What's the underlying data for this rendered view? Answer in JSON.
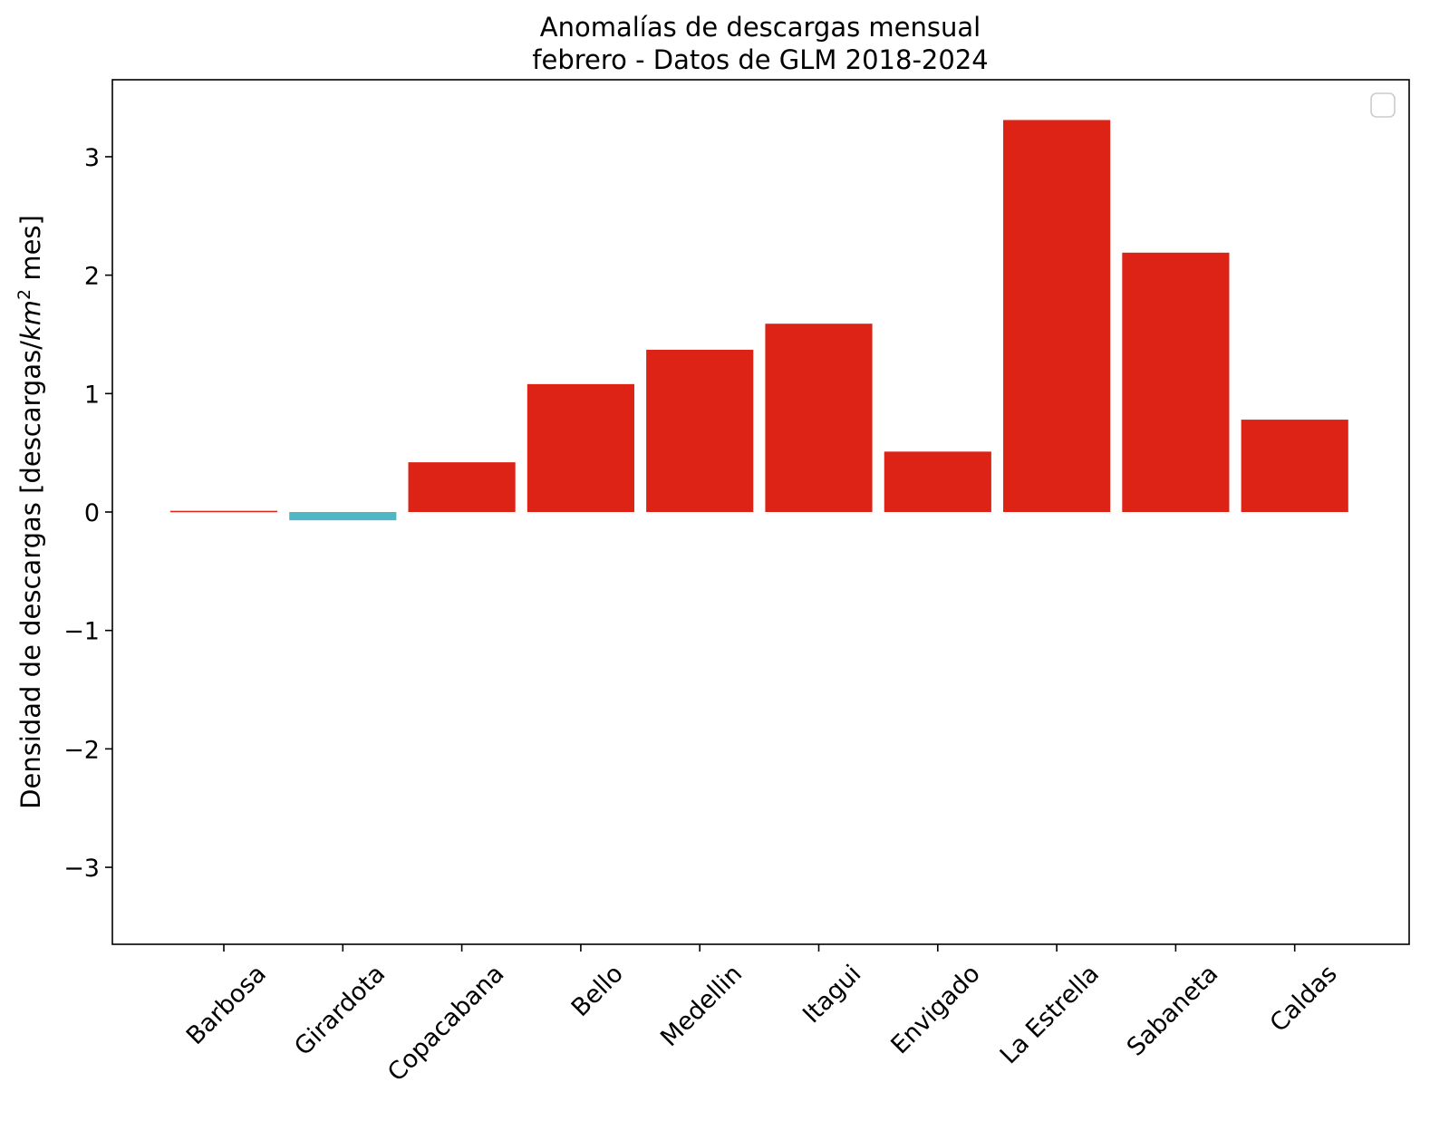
{
  "chart_data": {
    "type": "bar",
    "title": [
      "Anomalías de descargas mensual",
      "febrero - Datos de GLM 2018-2024"
    ],
    "xlabel": "",
    "ylabel": "Densidad de descargas [descargas/km² mes]",
    "ylabel_parts": {
      "prefix": "Densidad de descargas [descargas/",
      "unit_base": "km",
      "unit_exp": "2",
      "suffix": " mes]"
    },
    "categories": [
      "Barbosa",
      "Girardota",
      "Copacabana",
      "Bello",
      "Medellin",
      "Itagui",
      "Envigado",
      "La Estrella",
      "Sabaneta",
      "Caldas"
    ],
    "values": [
      0.01,
      -0.07,
      0.42,
      1.08,
      1.37,
      1.59,
      0.51,
      3.31,
      2.19,
      0.78
    ],
    "ylim": [
      -3.65,
      3.65
    ],
    "yticks": [
      -3,
      -2,
      -1,
      0,
      1,
      2,
      3
    ],
    "ytick_labels": [
      "−3",
      "−2",
      "−1",
      "0",
      "1",
      "2",
      "3"
    ],
    "colors": {
      "positive": "#dd2316",
      "negative": "#4fb7c3"
    },
    "grid": false,
    "legend": {
      "placement": "top-right",
      "entries": []
    }
  }
}
